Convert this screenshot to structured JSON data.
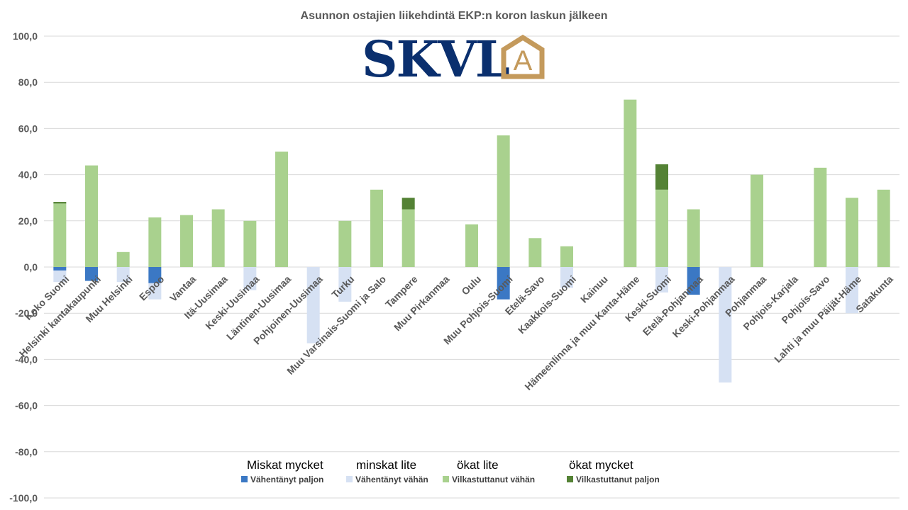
{
  "chart_data": {
    "type": "bar",
    "stacked": true,
    "title": "Asunnon ostajien liikehdintä EKP:n koron laskun jälkeen",
    "ylim": [
      -100,
      100
    ],
    "yticks": [
      "100,0",
      "80,0",
      "60,0",
      "40,0",
      "20,0",
      "0,0",
      "-20,0",
      "-40,0",
      "-60,0",
      "-80,0",
      "-100,0"
    ],
    "grid": true,
    "categories": [
      "Koko Suomi",
      "Helsinki kantakaupunki",
      "Muu Helsinki",
      "Espoo",
      "Vantaa",
      "Itä-Uusimaa",
      "Keski-Uusimaa",
      "Läntinen-Uusimaa",
      "Pohjoinen-Uusimaa",
      "Turku",
      "Muu Varsinais-Suomi ja Salo",
      "Tampere",
      "Muu Pirkanmaa",
      "Oulu",
      "Muu Pohjois-Suomi",
      "Etelä-Savo",
      "Kaakkois-Suomi",
      "Kainuu",
      "Hämeenlinna ja muu Kanta-Häme",
      "Keski-Suomi",
      "Etelä-Pohjanmaa",
      "Keski-Pohjanmaa",
      "Pohjanmaa",
      "Pohjois-Karjala",
      "Pohjois-Savo",
      "Lahti ja muu Päijät-Häme",
      "Satakunta"
    ],
    "series": [
      {
        "name": "Vähentänyt paljon",
        "color": "#3b78c4",
        "values": [
          -1.5,
          -6,
          0,
          -7,
          0,
          0,
          0,
          0,
          0,
          0,
          0,
          0,
          0,
          0,
          -14,
          0,
          0,
          0,
          0,
          0,
          -12,
          0,
          0,
          0,
          0,
          0,
          0
        ]
      },
      {
        "name": "Vähentänyt vähän",
        "color": "#d6e1f3",
        "values": [
          -5,
          0,
          -6.5,
          -7,
          0,
          0,
          -10,
          0,
          -33,
          -15,
          0,
          0,
          0,
          0,
          0,
          0,
          -9,
          0,
          0,
          -11,
          0,
          -50,
          0,
          0,
          0,
          -20,
          0
        ]
      },
      {
        "name": "Vilkastuttanut vähän",
        "color": "#a9d18e",
        "values": [
          27.5,
          44,
          6.5,
          21.5,
          22.5,
          25,
          20,
          50,
          0,
          20,
          33.5,
          25,
          0,
          18.5,
          57,
          12.5,
          9,
          0,
          72.5,
          33.5,
          25,
          0,
          40,
          0,
          43,
          30,
          33.5
        ]
      },
      {
        "name": "Vilkastuttanut paljon",
        "color": "#548235",
        "values": [
          0.7,
          0,
          0,
          0,
          0,
          0,
          0,
          0,
          0,
          0,
          0,
          5,
          0,
          0,
          0,
          0,
          0,
          0,
          0,
          11,
          0,
          0,
          0,
          0,
          0,
          0,
          0
        ]
      }
    ],
    "legend_position": "bottom",
    "legend_headers": [
      "Miskat mycket",
      "minskat lite",
      "ökat lite",
      "ökat mycket"
    ]
  },
  "logo": {
    "text": "SKVL",
    "mark": "A",
    "colors": {
      "text": "#0a2f6e",
      "mark": "#c49a5c"
    }
  }
}
